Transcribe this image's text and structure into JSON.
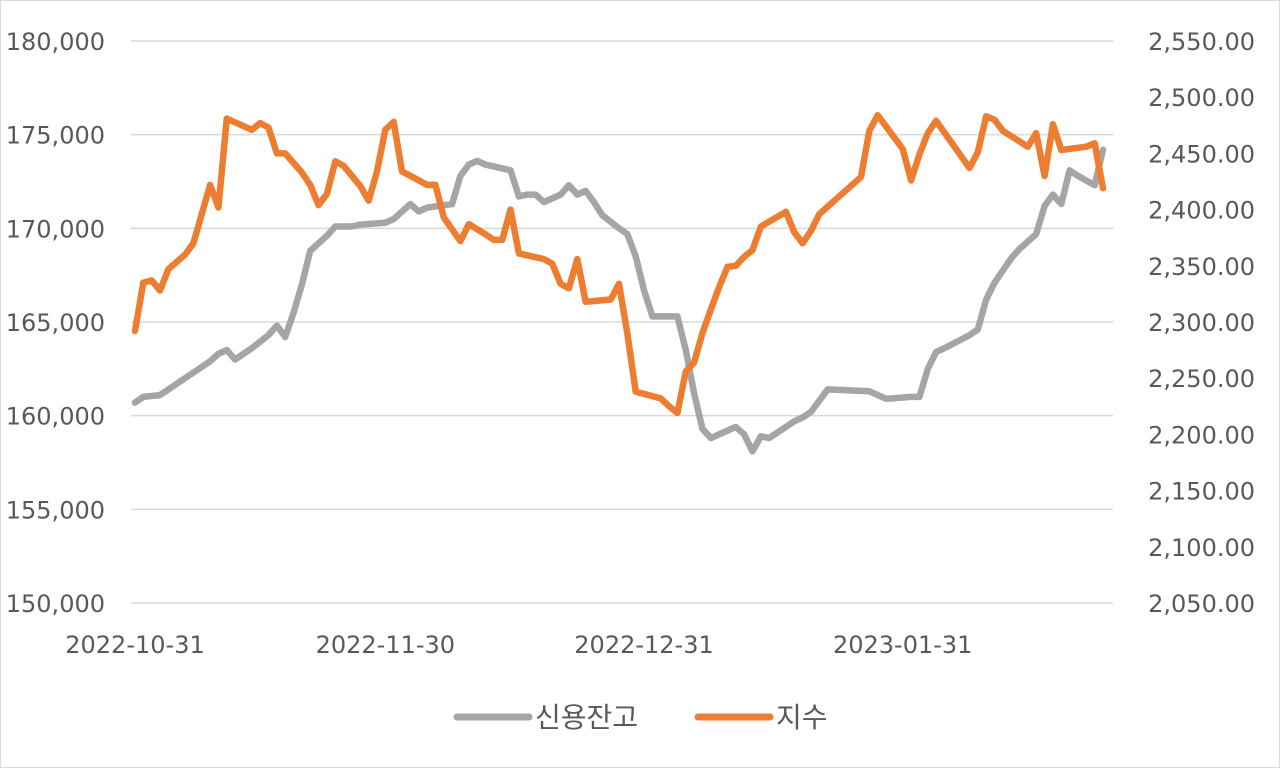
{
  "chart_data": {
    "type": "line",
    "title": "",
    "xlabel": "",
    "ylabel": "",
    "grid": true,
    "legend_position": "bottom",
    "x_tick_labels": [
      "2022-10-31",
      "2022-11-30",
      "2022-12-31",
      "2023-01-31"
    ],
    "x_range": [
      "2022-10-31",
      "2023-02-24"
    ],
    "y_left": {
      "range": [
        150000,
        180000
      ],
      "ticks": [
        150000,
        155000,
        160000,
        165000,
        170000,
        175000,
        180000
      ],
      "tick_labels": [
        "150,000",
        "155,000",
        "160,000",
        "165,000",
        "170,000",
        "175,000",
        "180,000"
      ]
    },
    "y_right": {
      "range": [
        2050,
        2550
      ],
      "ticks": [
        2050,
        2100,
        2150,
        2200,
        2250,
        2300,
        2350,
        2400,
        2450,
        2500,
        2550
      ],
      "tick_labels": [
        "2,050.00",
        "2,100.00",
        "2,150.00",
        "2,200.00",
        "2,250.00",
        "2,300.00",
        "2,350.00",
        "2,400.00",
        "2,450.00",
        "2,500.00",
        "2,550.00"
      ]
    },
    "series": [
      {
        "name": "신용잔고",
        "axis": "left",
        "color": "#a5a5a5",
        "points": [
          [
            "2022-10-31",
            160700
          ],
          [
            "2022-11-01",
            161000
          ],
          [
            "2022-11-03",
            161100
          ],
          [
            "2022-11-05",
            161700
          ],
          [
            "2022-11-07",
            162300
          ],
          [
            "2022-11-09",
            162900
          ],
          [
            "2022-11-10",
            163300
          ],
          [
            "2022-11-11",
            163500
          ],
          [
            "2022-11-12",
            163000
          ],
          [
            "2022-11-14",
            163600
          ],
          [
            "2022-11-16",
            164300
          ],
          [
            "2022-11-17",
            164800
          ],
          [
            "2022-11-18",
            164200
          ],
          [
            "2022-11-19",
            165500
          ],
          [
            "2022-11-20",
            167000
          ],
          [
            "2022-11-21",
            168800
          ],
          [
            "2022-11-23",
            169600
          ],
          [
            "2022-11-24",
            170100
          ],
          [
            "2022-11-26",
            170100
          ],
          [
            "2022-11-27",
            170200
          ],
          [
            "2022-11-30",
            170300
          ],
          [
            "2022-12-01",
            170500
          ],
          [
            "2022-12-03",
            171300
          ],
          [
            "2022-12-04",
            170900
          ],
          [
            "2022-12-05",
            171100
          ],
          [
            "2022-12-08",
            171300
          ],
          [
            "2022-12-09",
            172800
          ],
          [
            "2022-12-10",
            173400
          ],
          [
            "2022-12-11",
            173600
          ],
          [
            "2022-12-12",
            173400
          ],
          [
            "2022-12-15",
            173100
          ],
          [
            "2022-12-16",
            171700
          ],
          [
            "2022-12-17",
            171800
          ],
          [
            "2022-12-18",
            171800
          ],
          [
            "2022-12-19",
            171400
          ],
          [
            "2022-12-21",
            171800
          ],
          [
            "2022-12-22",
            172300
          ],
          [
            "2022-12-23",
            171800
          ],
          [
            "2022-12-24",
            172000
          ],
          [
            "2022-12-25",
            171400
          ],
          [
            "2022-12-26",
            170700
          ],
          [
            "2022-12-28",
            170000
          ],
          [
            "2022-12-29",
            169700
          ],
          [
            "2022-12-30",
            168500
          ],
          [
            "2022-12-31",
            166700
          ],
          [
            "2023-01-01",
            165300
          ],
          [
            "2023-01-04",
            165300
          ],
          [
            "2023-01-05",
            163500
          ],
          [
            "2023-01-06",
            161200
          ],
          [
            "2023-01-07",
            159300
          ],
          [
            "2023-01-08",
            158800
          ],
          [
            "2023-01-11",
            159400
          ],
          [
            "2023-01-12",
            159000
          ],
          [
            "2023-01-13",
            158100
          ],
          [
            "2023-01-14",
            158900
          ],
          [
            "2023-01-15",
            158800
          ],
          [
            "2023-01-18",
            159700
          ],
          [
            "2023-01-19",
            159900
          ],
          [
            "2023-01-20",
            160200
          ],
          [
            "2023-01-21",
            160800
          ],
          [
            "2023-01-22",
            161400
          ],
          [
            "2023-01-27",
            161300
          ],
          [
            "2023-01-28",
            161100
          ],
          [
            "2023-01-29",
            160900
          ],
          [
            "2023-02-01",
            161000
          ],
          [
            "2023-02-02",
            161000
          ],
          [
            "2023-02-03",
            162500
          ],
          [
            "2023-02-04",
            163400
          ],
          [
            "2023-02-05",
            163600
          ],
          [
            "2023-02-08",
            164300
          ],
          [
            "2023-02-09",
            164600
          ],
          [
            "2023-02-10",
            166200
          ],
          [
            "2023-02-11",
            167100
          ],
          [
            "2023-02-13",
            168400
          ],
          [
            "2023-02-14",
            168900
          ],
          [
            "2023-02-16",
            169700
          ],
          [
            "2023-02-17",
            171200
          ],
          [
            "2023-02-18",
            171800
          ],
          [
            "2023-02-19",
            171300
          ],
          [
            "2023-02-20",
            173100
          ],
          [
            "2023-02-21",
            172800
          ],
          [
            "2023-02-23",
            172300
          ],
          [
            "2023-02-24",
            174200
          ]
        ]
      },
      {
        "name": "지수",
        "axis": "right",
        "color": "#ed7d31",
        "points": [
          [
            "2022-10-31",
            2292
          ],
          [
            "2022-11-01",
            2335
          ],
          [
            "2022-11-02",
            2337
          ],
          [
            "2022-11-03",
            2328
          ],
          [
            "2022-11-04",
            2347
          ],
          [
            "2022-11-06",
            2360
          ],
          [
            "2022-11-07",
            2370
          ],
          [
            "2022-11-09",
            2422
          ],
          [
            "2022-11-10",
            2402
          ],
          [
            "2022-11-11",
            2481
          ],
          [
            "2022-11-14",
            2471
          ],
          [
            "2022-11-15",
            2477
          ],
          [
            "2022-11-16",
            2473
          ],
          [
            "2022-11-17",
            2450
          ],
          [
            "2022-11-18",
            2450
          ],
          [
            "2022-11-20",
            2433
          ],
          [
            "2022-11-21",
            2422
          ],
          [
            "2022-11-22",
            2404
          ],
          [
            "2022-11-23",
            2414
          ],
          [
            "2022-11-24",
            2443
          ],
          [
            "2022-11-25",
            2439
          ],
          [
            "2022-11-27",
            2421
          ],
          [
            "2022-11-28",
            2408
          ],
          [
            "2022-11-29",
            2434
          ],
          [
            "2022-11-30",
            2471
          ],
          [
            "2022-12-01",
            2478
          ],
          [
            "2022-12-02",
            2434
          ],
          [
            "2022-12-05",
            2422
          ],
          [
            "2022-12-06",
            2422
          ],
          [
            "2022-12-07",
            2393
          ],
          [
            "2022-12-09",
            2372
          ],
          [
            "2022-12-10",
            2387
          ],
          [
            "2022-12-12",
            2378
          ],
          [
            "2022-12-13",
            2373
          ],
          [
            "2022-12-14",
            2373
          ],
          [
            "2022-12-15",
            2400
          ],
          [
            "2022-12-16",
            2361
          ],
          [
            "2022-12-19",
            2356
          ],
          [
            "2022-12-20",
            2352
          ],
          [
            "2022-12-21",
            2334
          ],
          [
            "2022-12-22",
            2330
          ],
          [
            "2022-12-23",
            2356
          ],
          [
            "2022-12-24",
            2318
          ],
          [
            "2022-12-27",
            2320
          ],
          [
            "2022-12-28",
            2334
          ],
          [
            "2022-12-29",
            2290
          ],
          [
            "2022-12-30",
            2238
          ],
          [
            "2023-01-02",
            2232
          ],
          [
            "2023-01-03",
            2225
          ],
          [
            "2023-01-04",
            2219
          ],
          [
            "2023-01-05",
            2256
          ],
          [
            "2023-01-06",
            2264
          ],
          [
            "2023-01-07",
            2290
          ],
          [
            "2023-01-08",
            2311
          ],
          [
            "2023-01-09",
            2331
          ],
          [
            "2023-01-10",
            2349
          ],
          [
            "2023-01-11",
            2350
          ],
          [
            "2023-01-12",
            2358
          ],
          [
            "2023-01-13",
            2364
          ],
          [
            "2023-01-14",
            2385
          ],
          [
            "2023-01-17",
            2398
          ],
          [
            "2023-01-18",
            2380
          ],
          [
            "2023-01-19",
            2370
          ],
          [
            "2023-01-20",
            2381
          ],
          [
            "2023-01-21",
            2396
          ],
          [
            "2023-01-26",
            2429
          ],
          [
            "2023-01-27",
            2470
          ],
          [
            "2023-01-28",
            2484
          ],
          [
            "2023-01-31",
            2454
          ],
          [
            "2023-02-01",
            2426
          ],
          [
            "2023-02-02",
            2449
          ],
          [
            "2023-02-03",
            2468
          ],
          [
            "2023-02-04",
            2479
          ],
          [
            "2023-02-06",
            2458
          ],
          [
            "2023-02-08",
            2437
          ],
          [
            "2023-02-09",
            2451
          ],
          [
            "2023-02-10",
            2483
          ],
          [
            "2023-02-11",
            2480
          ],
          [
            "2023-02-12",
            2470
          ],
          [
            "2023-02-15",
            2456
          ],
          [
            "2023-02-16",
            2468
          ],
          [
            "2023-02-17",
            2430
          ],
          [
            "2023-02-18",
            2476
          ],
          [
            "2023-02-19",
            2453
          ],
          [
            "2023-02-22",
            2456
          ],
          [
            "2023-02-23",
            2459
          ],
          [
            "2023-02-24",
            2419
          ]
        ]
      }
    ]
  }
}
